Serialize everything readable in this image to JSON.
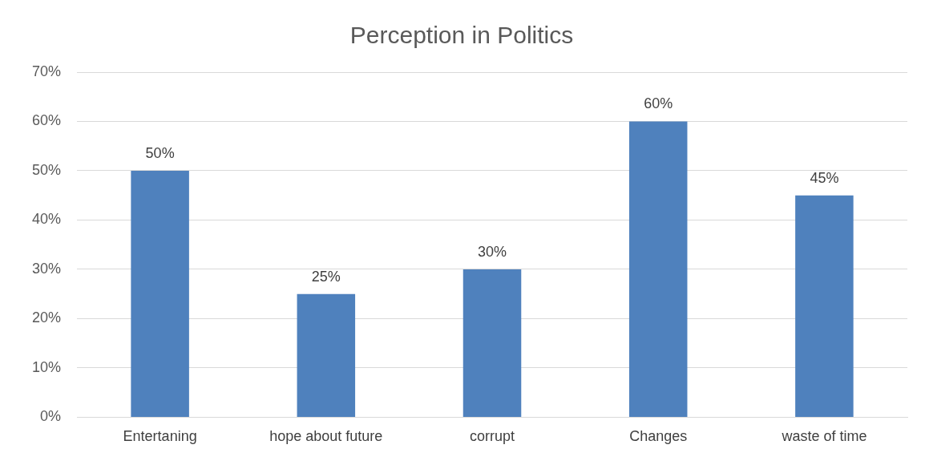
{
  "chart_data": {
    "type": "bar",
    "title": "Perception in Politics",
    "categories": [
      "Entertaning",
      "hope about future",
      "corrupt",
      "Changes",
      "waste of time"
    ],
    "values": [
      50,
      25,
      30,
      60,
      45
    ],
    "value_labels": [
      "50%",
      "25%",
      "30%",
      "60%",
      "45%"
    ],
    "color": "#4f81bd",
    "ylim": [
      0,
      70
    ],
    "yticks": [
      {
        "value": 0,
        "label": "0%"
      },
      {
        "value": 10,
        "label": "10%"
      },
      {
        "value": 20,
        "label": "20%"
      },
      {
        "value": 30,
        "label": "30%"
      },
      {
        "value": 40,
        "label": "40%"
      },
      {
        "value": 50,
        "label": "50%"
      },
      {
        "value": 60,
        "label": "60%"
      },
      {
        "value": 70,
        "label": "70%"
      }
    ],
    "grid": "y",
    "legend": false
  }
}
